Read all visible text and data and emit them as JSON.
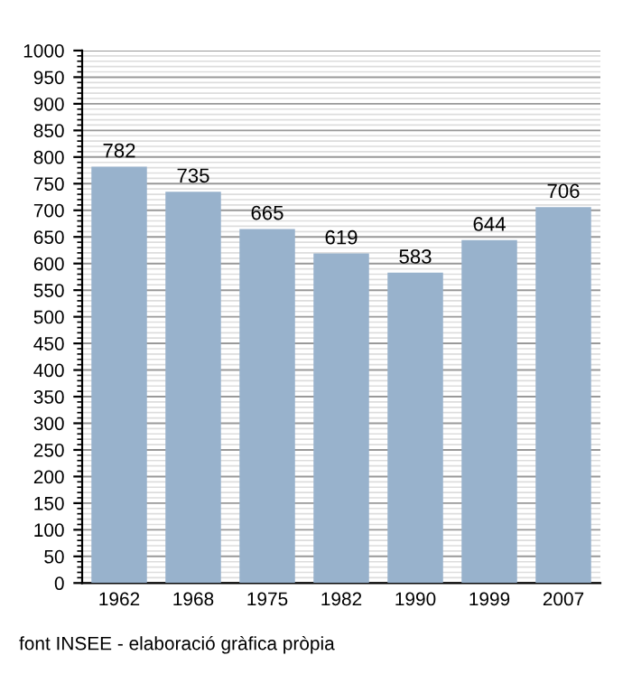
{
  "chart_data": {
    "type": "bar",
    "categories": [
      "1962",
      "1968",
      "1975",
      "1982",
      "1990",
      "1999",
      "2007"
    ],
    "values": [
      782,
      735,
      665,
      619,
      583,
      644,
      706
    ],
    "color": "#98b2cc",
    "data_labels": true,
    "grid": "y",
    "ylim": [
      0,
      1000
    ],
    "yticks": [
      0,
      50,
      100,
      150,
      200,
      250,
      300,
      350,
      400,
      450,
      500,
      550,
      600,
      650,
      700,
      750,
      800,
      850,
      900,
      950,
      1000
    ],
    "annotations": [
      "font INSEE - elaboració gràfica pròpia"
    ]
  }
}
